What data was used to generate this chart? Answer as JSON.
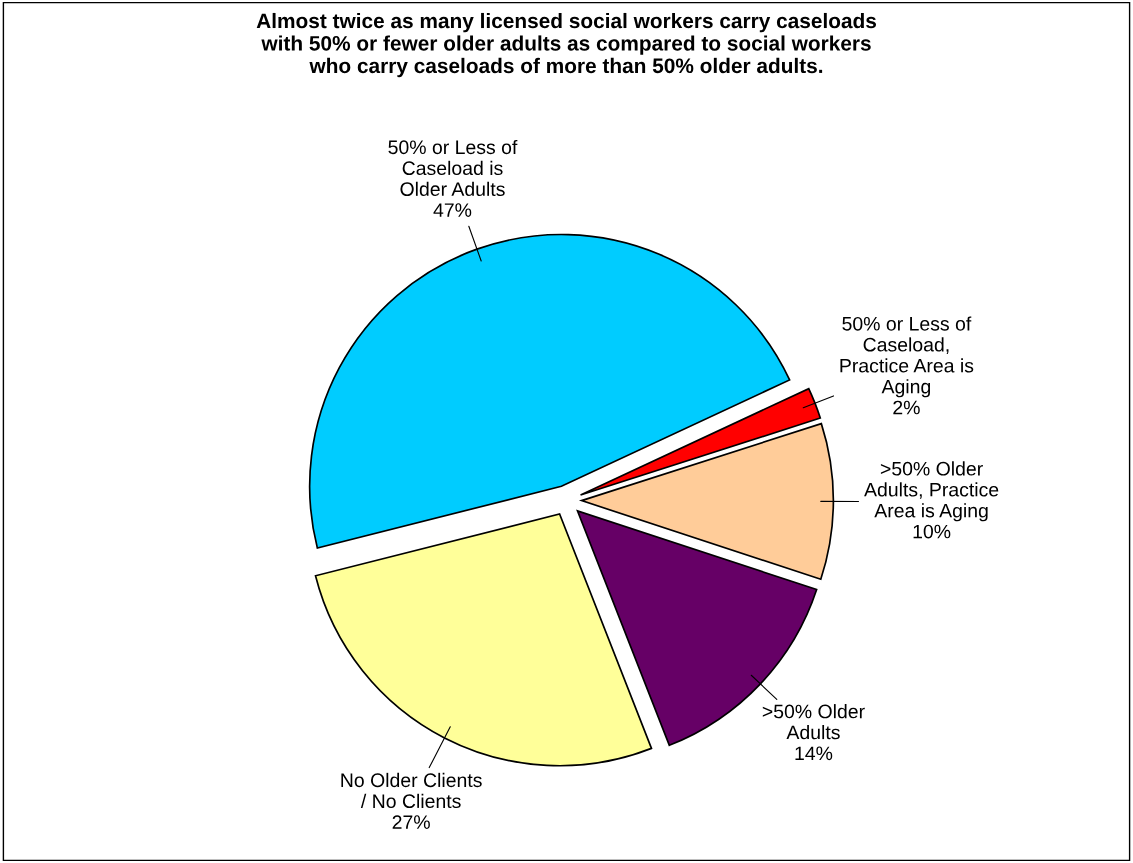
{
  "chart_data": {
    "type": "pie",
    "title": "Almost twice as many licensed social workers carry caseloads\nwith 50% or fewer older adults as compared to social workers\nwho carry caseloads of more than 50% older adults.",
    "categories": [
      "50% or Less of\nCaseload,\nPractice Area is\nAging",
      ">50% Older\nAdults, Practice\nArea is Aging",
      ">50% Older\nAdults",
      "No Older Clients\n/ No Clients",
      "50% or Less of\nCaseload is\nOlder Adults"
    ],
    "values": [
      2,
      10,
      14,
      27,
      47
    ],
    "colors": [
      "#ff0000",
      "#ffcc99",
      "#660066",
      "#ffff99",
      "#00ccff"
    ],
    "value_labels": [
      "2%",
      "10%",
      "14%",
      "27%",
      "47%"
    ]
  }
}
